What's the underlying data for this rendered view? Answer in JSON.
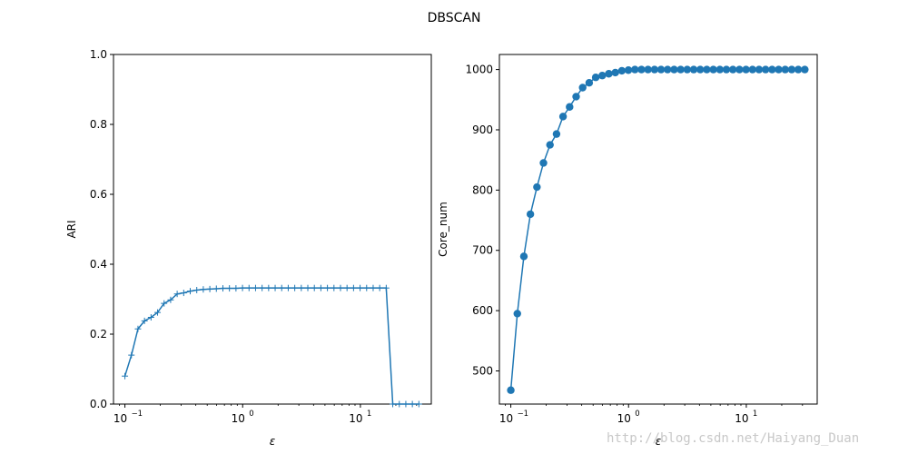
{
  "figure": {
    "title": "DBSCAN",
    "watermark": "http://blog.csdn.net/Haiyang_Duan"
  },
  "colors": {
    "series": "#1f77b4",
    "axis": "#000000",
    "watermark": "#c8c8c8"
  },
  "chart_data": [
    {
      "type": "line",
      "marker": "plus",
      "title": "",
      "xlabel": "ε",
      "ylabel": "ARI",
      "xscale": "log",
      "xlim": [
        0.08,
        40
      ],
      "ylim": [
        0,
        1.0
      ],
      "yticks": [
        0.0,
        0.2,
        0.4,
        0.6,
        0.8,
        1.0
      ],
      "ytick_labels": [
        "0.0",
        "0.2",
        "0.4",
        "0.6",
        "0.8",
        "1.0"
      ],
      "xticks": [
        0.1,
        1,
        10
      ],
      "xtick_labels": [
        "10",
        "10",
        "10"
      ],
      "xtick_exponents": [
        "−1",
        "0",
        "1"
      ],
      "grid": false,
      "x": [
        0.1,
        0.1136,
        0.1291,
        0.1467,
        0.1667,
        0.1894,
        0.2152,
        0.2445,
        0.2778,
        0.3157,
        0.3587,
        0.4076,
        0.4631,
        0.5262,
        0.5979,
        0.6794,
        0.772,
        0.8772,
        0.9968,
        1.1327,
        1.287,
        1.4624,
        1.6617,
        1.8881,
        2.1454,
        2.4378,
        2.77,
        3.1475,
        3.5764,
        4.0638,
        4.6176,
        5.2468,
        5.9618,
        6.7743,
        7.6974,
        8.7464,
        9.9383,
        11.2926,
        12.8314,
        14.5801,
        16.5669,
        18.8245,
        21.3898,
        24.3047,
        27.6168,
        31.38
      ],
      "series": [
        {
          "values": [
            0.08,
            0.14,
            0.215,
            0.238,
            0.248,
            0.262,
            0.288,
            0.298,
            0.315,
            0.318,
            0.323,
            0.326,
            0.328,
            0.329,
            0.33,
            0.331,
            0.331,
            0.331,
            0.332,
            0.332,
            0.332,
            0.332,
            0.332,
            0.332,
            0.332,
            0.332,
            0.332,
            0.332,
            0.332,
            0.332,
            0.332,
            0.332,
            0.332,
            0.332,
            0.332,
            0.332,
            0.332,
            0.332,
            0.332,
            0.332,
            0.332,
            0.0,
            0.0,
            0.0,
            0.0,
            0.0
          ]
        }
      ]
    },
    {
      "type": "line",
      "marker": "circle",
      "title": "",
      "xlabel": "ε",
      "ylabel": "Core_num",
      "xscale": "log",
      "xlim": [
        0.08,
        40
      ],
      "ylim": [
        445,
        1025
      ],
      "yticks": [
        500,
        600,
        700,
        800,
        900,
        1000
      ],
      "ytick_labels": [
        "500",
        "600",
        "700",
        "800",
        "900",
        "1000"
      ],
      "xticks": [
        0.1,
        1,
        10
      ],
      "xtick_labels": [
        "10",
        "10",
        "10"
      ],
      "xtick_exponents": [
        "−1",
        "0",
        "1"
      ],
      "grid": false,
      "x": [
        0.1,
        0.1136,
        0.1291,
        0.1467,
        0.1667,
        0.1894,
        0.2152,
        0.2445,
        0.2778,
        0.3157,
        0.3587,
        0.4076,
        0.4631,
        0.5262,
        0.5979,
        0.6794,
        0.772,
        0.8772,
        0.9968,
        1.1327,
        1.287,
        1.4624,
        1.6617,
        1.8881,
        2.1454,
        2.4378,
        2.77,
        3.1475,
        3.5764,
        4.0638,
        4.6176,
        5.2468,
        5.9618,
        6.7743,
        7.6974,
        8.7464,
        9.9383,
        11.2926,
        12.8314,
        14.5801,
        16.5669,
        18.8245,
        21.3898,
        24.3047,
        27.6168,
        31.38
      ],
      "series": [
        {
          "values": [
            468,
            595,
            690,
            760,
            805,
            845,
            875,
            893,
            922,
            938,
            955,
            970,
            978,
            987,
            990,
            993,
            995,
            998,
            999,
            1000,
            1000,
            1000,
            1000,
            1000,
            1000,
            1000,
            1000,
            1000,
            1000,
            1000,
            1000,
            1000,
            1000,
            1000,
            1000,
            1000,
            1000,
            1000,
            1000,
            1000,
            1000,
            1000,
            1000,
            1000,
            1000,
            1000
          ]
        }
      ]
    }
  ]
}
